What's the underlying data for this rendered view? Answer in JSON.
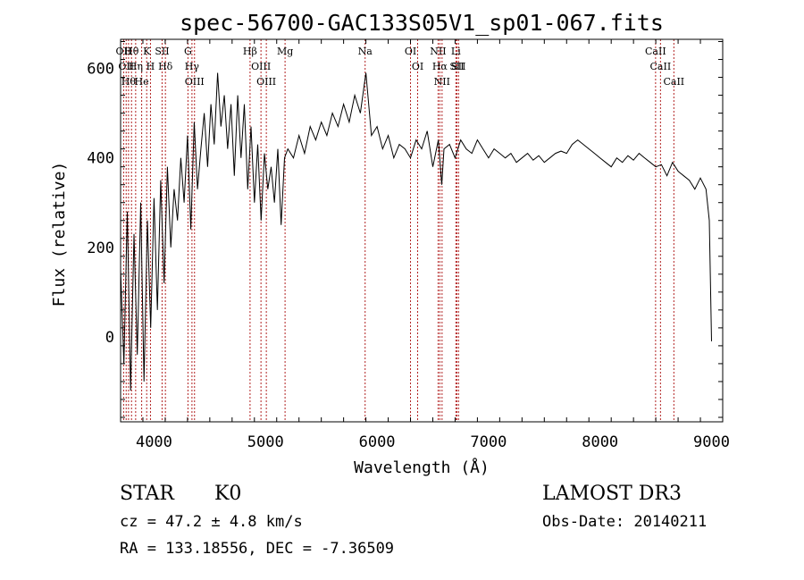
{
  "chart_data": {
    "type": "line",
    "title": "spec-56700-GAC133S05V1_sp01-067.fits",
    "xlabel": "Wavelength (Å)",
    "ylabel": "Flux (relative)",
    "xlim": [
      3700,
      9100
    ],
    "ylim": [
      -190,
      665
    ],
    "x_ticks": [
      4000,
      5000,
      6000,
      7000,
      8000,
      9000
    ],
    "x_tick_labels": [
      "4000",
      "5000",
      "6000",
      "7000",
      "8000",
      "9000"
    ],
    "y_ticks": [
      0,
      200,
      400,
      600
    ],
    "y_tick_labels": [
      "0",
      "200",
      "400",
      "600"
    ],
    "grid": false,
    "series": [
      {
        "x": [
          3700,
          3730,
          3760,
          3790,
          3820,
          3850,
          3880,
          3910,
          3940,
          3970,
          4000,
          4030,
          4060,
          4090,
          4120,
          4150,
          4180,
          4210,
          4240,
          4270,
          4300,
          4330,
          4360,
          4390,
          4420,
          4450,
          4480,
          4510,
          4540,
          4570,
          4600,
          4630,
          4660,
          4690,
          4720,
          4750,
          4780,
          4810,
          4840,
          4870,
          4900,
          4930,
          4960,
          4990,
          5020,
          5050,
          5080,
          5110,
          5140,
          5170,
          5200,
          5250,
          5300,
          5350,
          5400,
          5450,
          5500,
          5550,
          5600,
          5650,
          5700,
          5750,
          5800,
          5850,
          5900,
          5950,
          6000,
          6050,
          6100,
          6150,
          6200,
          6250,
          6300,
          6350,
          6400,
          6450,
          6500,
          6550,
          6580,
          6600,
          6650,
          6700,
          6750,
          6800,
          6850,
          6900,
          6950,
          7000,
          7050,
          7100,
          7150,
          7200,
          7250,
          7300,
          7350,
          7400,
          7450,
          7500,
          7550,
          7600,
          7650,
          7700,
          7750,
          7800,
          7850,
          7900,
          7950,
          8000,
          8050,
          8100,
          8150,
          8200,
          8250,
          8300,
          8350,
          8400,
          8450,
          8500,
          8550,
          8600,
          8650,
          8700,
          8750,
          8800,
          8850,
          8900,
          8950,
          8980,
          9000
        ],
        "y": [
          150,
          -60,
          280,
          -120,
          230,
          -40,
          300,
          -100,
          260,
          20,
          310,
          60,
          350,
          120,
          380,
          200,
          330,
          260,
          400,
          300,
          450,
          240,
          480,
          330,
          420,
          500,
          380,
          520,
          430,
          590,
          470,
          540,
          420,
          520,
          360,
          540,
          400,
          520,
          330,
          470,
          300,
          430,
          260,
          410,
          330,
          380,
          300,
          420,
          250,
          400,
          420,
          400,
          450,
          410,
          470,
          440,
          480,
          450,
          500,
          470,
          520,
          480,
          540,
          500,
          590,
          450,
          470,
          420,
          450,
          400,
          430,
          420,
          400,
          440,
          420,
          460,
          380,
          440,
          340,
          420,
          430,
          400,
          440,
          420,
          410,
          440,
          420,
          400,
          420,
          410,
          400,
          410,
          390,
          400,
          410,
          395,
          405,
          390,
          400,
          410,
          415,
          410,
          430,
          440,
          430,
          420,
          410,
          400,
          390,
          380,
          400,
          390,
          405,
          395,
          410,
          400,
          390,
          380,
          385,
          360,
          390,
          370,
          360,
          350,
          330,
          355,
          330,
          260,
          -10
        ]
      }
    ],
    "line_markers": [
      {
        "wavelength": 3727,
        "label": "OII"
      },
      {
        "wavelength": 3750,
        "label": "OII"
      },
      {
        "wavelength": 3771,
        "label": "Hθ"
      },
      {
        "wavelength": 3798,
        "label": "Hθ"
      },
      {
        "wavelength": 3835,
        "label": "Hη"
      },
      {
        "wavelength": 3889,
        "label": "He"
      },
      {
        "wavelength": 3934,
        "label": "K"
      },
      {
        "wavelength": 3968,
        "label": "H"
      },
      {
        "wavelength": 4072,
        "label": "SII"
      },
      {
        "wavelength": 4102,
        "label": "Hδ"
      },
      {
        "wavelength": 4304,
        "label": "G"
      },
      {
        "wavelength": 4340,
        "label": "Hγ"
      },
      {
        "wavelength": 4363,
        "label": "OIII"
      },
      {
        "wavelength": 4861,
        "label": "Hβ"
      },
      {
        "wavelength": 4959,
        "label": "OIII"
      },
      {
        "wavelength": 5007,
        "label": "OIII"
      },
      {
        "wavelength": 5175,
        "label": "Mg"
      },
      {
        "wavelength": 5893,
        "label": "Na"
      },
      {
        "wavelength": 6300,
        "label": "OI"
      },
      {
        "wavelength": 6364,
        "label": "OI"
      },
      {
        "wavelength": 6548,
        "label": "NII"
      },
      {
        "wavelength": 6563,
        "label": "Hα"
      },
      {
        "wavelength": 6583,
        "label": "NII"
      },
      {
        "wavelength": 6707,
        "label": "Li"
      },
      {
        "wavelength": 6716,
        "label": "SII"
      },
      {
        "wavelength": 6731,
        "label": "SII"
      },
      {
        "wavelength": 8498,
        "label": "CaII"
      },
      {
        "wavelength": 8542,
        "label": "CaII"
      },
      {
        "wavelength": 8662,
        "label": "CaII"
      }
    ]
  },
  "info": {
    "class_label": "STAR",
    "subclass": "K0",
    "survey": "LAMOST DR3",
    "redshift_line": "cz = 47.2 ± 4.8 km/s",
    "obs_date_line": "Obs-Date: 20140211",
    "coords_line": "RA = 133.18556, DEC =  -7.36509"
  },
  "colors": {
    "spectrum": "#000000",
    "marker": "#b22222",
    "background": "#ffffff"
  }
}
